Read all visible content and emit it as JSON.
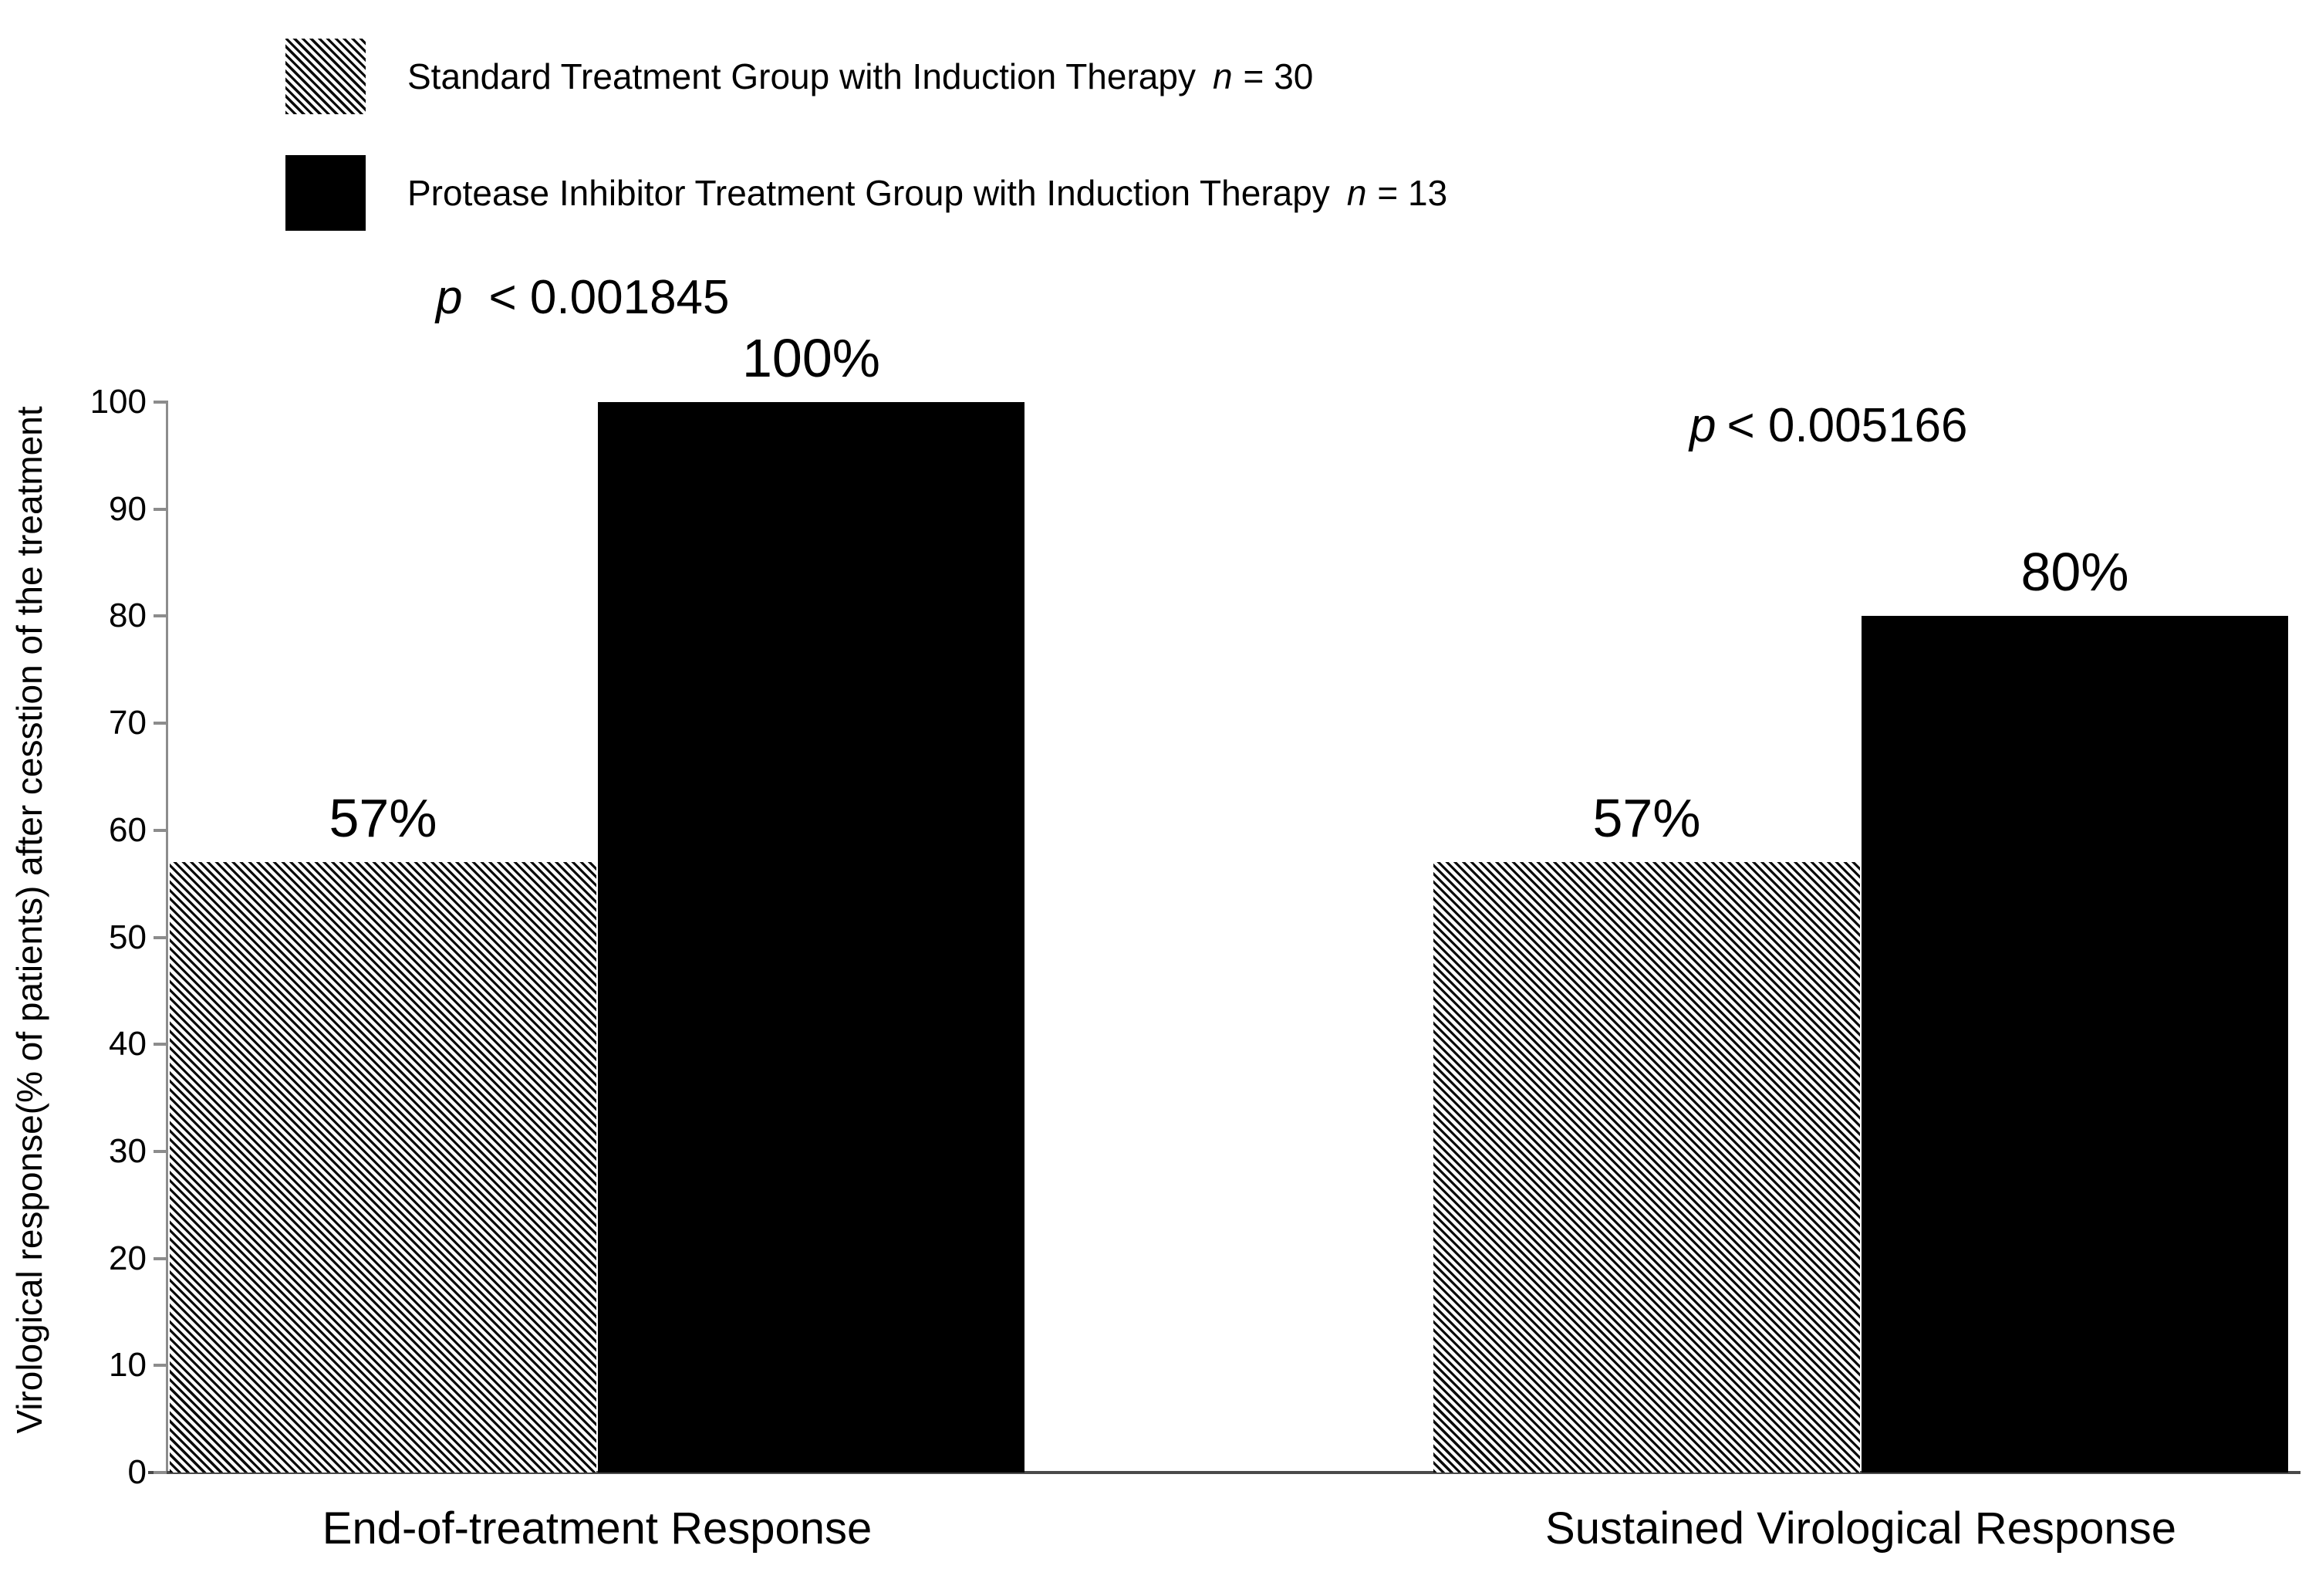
{
  "legend": {
    "items": [
      {
        "swatch": "hatched",
        "text": "Standard Treatment Group with Induction Therapy",
        "n_symbol": "n",
        "n_value": "= 30"
      },
      {
        "swatch": "solid",
        "text": "Protease Inhibitor Treatment Group with Induction Therapy",
        "n_symbol": "n",
        "n_value": "= 13"
      }
    ]
  },
  "chart_data": {
    "type": "bar",
    "categories": [
      "End-of-treatment Response",
      "Sustained Virological Response"
    ],
    "series": [
      {
        "name": "Standard Treatment Group with Induction Therapy",
        "n": 30,
        "style": "hatched",
        "values": [
          57,
          57
        ],
        "labels": [
          "57%",
          "57%"
        ]
      },
      {
        "name": "Protease Inhibitor Treatment Group with Induction Therapy",
        "n": 13,
        "style": "solid",
        "values": [
          100,
          80
        ],
        "labels": [
          "100%",
          "80%"
        ]
      }
    ],
    "annotations": [
      {
        "p_symbol": "p",
        "text": "< 0.001845",
        "applies_to": "End-of-treatment Response"
      },
      {
        "p_symbol": "p",
        "text": "< 0.005166",
        "applies_to": "Sustained Virological Response"
      }
    ],
    "title": "",
    "xlabel": "",
    "ylabel": "Virological response(% of patients) after cesstion of the treatment",
    "ylim": [
      0,
      100
    ],
    "yticks": [
      0,
      10,
      20,
      30,
      40,
      50,
      60,
      70,
      80,
      90,
      100
    ],
    "grid": false,
    "legend_position": "top-left",
    "colors": {
      "bar_solid": "#000000",
      "hatch_foreground": "#0a0a0a",
      "hatch_background": "#fbfbfb",
      "y_axis_line": "#8c8c8c",
      "x_axis_line": "#4a4a4a",
      "text": "#000000"
    }
  }
}
